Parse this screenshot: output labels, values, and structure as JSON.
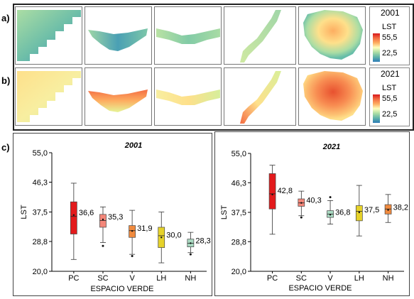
{
  "panels": {
    "a": "a)",
    "b": "b)",
    "c": "c)"
  },
  "legends": [
    {
      "year": "2001",
      "title": "LST",
      "max": "55,5",
      "min": "22,5"
    },
    {
      "year": "2021",
      "title": "LST",
      "max": "55,5",
      "min": "22,5"
    }
  ],
  "colors": {
    "ramp": [
      "#2c7bb6",
      "#5fb3a9",
      "#abdda4",
      "#ffffbf",
      "#fdae61",
      "#f46d43",
      "#d7191c"
    ],
    "box_PC": "#e31a1c",
    "box_SC": "#f4877a",
    "box_V": "#f08a3e",
    "box_LH": "#e6d22a",
    "box_NH": "#a8d8c0",
    "box_PC_2021": "#e31a1c",
    "box_SC_2021": "#f4877a",
    "box_V_2021": "#a8d8c0",
    "box_LH_2021": "#e6d22a",
    "box_NH_2021": "#f08a3e"
  },
  "chart_data": [
    {
      "type": "box",
      "title": "2001",
      "xlabel": "ESPACIO VERDE",
      "ylabel": "LST",
      "ylim": [
        20.0,
        55.0
      ],
      "yticks": [
        "55,0",
        "46,3",
        "37,5",
        "28,8",
        "20,0"
      ],
      "ytick_values": [
        55.0,
        46.3,
        37.5,
        28.8,
        20.0
      ],
      "categories": [
        "PC",
        "SC",
        "V",
        "LH",
        "NH"
      ],
      "boxes": [
        {
          "name": "PC",
          "mean_label": "36,6",
          "mean": 36.6,
          "median": 36.2,
          "q1": 31.0,
          "q3": 40.5,
          "whisker_low": 23.5,
          "whisker_high": 46.0,
          "outliers": []
        },
        {
          "name": "SC",
          "mean_label": "35,3",
          "mean": 35.3,
          "median": 35.0,
          "q1": 33.0,
          "q3": 36.8,
          "whisker_low": 28.5,
          "whisker_high": 39.0,
          "outliers": [
            27.5
          ]
        },
        {
          "name": "V",
          "mean_label": "31,9",
          "mean": 31.9,
          "median": 32.0,
          "q1": 30.0,
          "q3": 33.5,
          "whisker_low": 25.0,
          "whisker_high": 38.0,
          "outliers": [
            24.5
          ]
        },
        {
          "name": "LH",
          "mean_label": "30,0",
          "mean": 30.0,
          "median": 30.5,
          "q1": 27.0,
          "q3": 33.0,
          "whisker_low": 22.5,
          "whisker_high": 37.5,
          "outliers": []
        },
        {
          "name": "NH",
          "mean_label": "28,3",
          "mean": 28.3,
          "median": 28.3,
          "q1": 27.2,
          "q3": 29.5,
          "whisker_low": 25.5,
          "whisker_high": 31.5,
          "outliers": [
            25.0
          ]
        }
      ]
    },
    {
      "type": "box",
      "title": "2021",
      "xlabel": "ESPACIO VERDE",
      "ylabel": "LST",
      "ylim": [
        20.0,
        55.0
      ],
      "yticks": [
        "55,0",
        "46,3",
        "37,5",
        "28,8",
        "20,0"
      ],
      "ytick_values": [
        55.0,
        46.3,
        37.5,
        28.8,
        20.0
      ],
      "categories": [
        "PC",
        "SC",
        "V",
        "LH",
        "NH"
      ],
      "boxes": [
        {
          "name": "PC",
          "mean_label": "42,8",
          "mean": 42.8,
          "median": 43.0,
          "q1": 38.5,
          "q3": 49.0,
          "whisker_low": 31.0,
          "whisker_high": 51.5,
          "outliers": []
        },
        {
          "name": "SC",
          "mean_label": "40,3",
          "mean": 40.3,
          "median": 40.3,
          "q1": 39.3,
          "q3": 41.5,
          "whisker_low": 36.5,
          "whisker_high": 43.8,
          "outliers": [
            36.0
          ]
        },
        {
          "name": "V",
          "mean_label": "36,8",
          "mean": 36.8,
          "median": 37.0,
          "q1": 36.0,
          "q3": 38.0,
          "whisker_low": 34.0,
          "whisker_high": 41.0,
          "outliers": [
            42.0
          ]
        },
        {
          "name": "LH",
          "mean_label": "37,5",
          "mean": 37.5,
          "median": 37.8,
          "q1": 35.0,
          "q3": 39.5,
          "whisker_low": 30.5,
          "whisker_high": 45.5,
          "outliers": []
        },
        {
          "name": "NH",
          "mean_label": "38,2",
          "mean": 38.2,
          "median": 38.5,
          "q1": 37.0,
          "q3": 39.8,
          "whisker_low": 34.5,
          "whisker_high": 42.8,
          "outliers": []
        }
      ]
    }
  ]
}
